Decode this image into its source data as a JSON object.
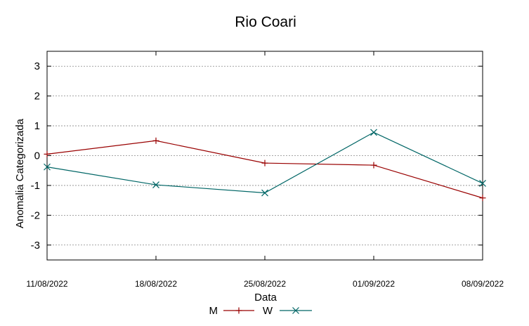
{
  "chart_data": {
    "type": "line",
    "title": "Rio Coari",
    "xlabel": "Data",
    "ylabel": "Anomalia Categorizada",
    "categories": [
      "11/08/2022",
      "18/08/2022",
      "25/08/2022",
      "01/09/2022",
      "08/09/2022"
    ],
    "yticks": [
      3,
      2,
      1,
      0,
      -1,
      -2,
      -3
    ],
    "ylim": [
      -3.5,
      3.5
    ],
    "grid": true,
    "legend_position": "bottom-center",
    "series": [
      {
        "name": "M",
        "color": "#990000",
        "marker": "plus",
        "values": [
          0.05,
          0.5,
          -0.25,
          -0.32,
          -1.42
        ]
      },
      {
        "name": "W",
        "color": "#006666",
        "marker": "x",
        "values": [
          -0.38,
          -0.98,
          -1.25,
          0.78,
          -0.93
        ]
      }
    ]
  }
}
